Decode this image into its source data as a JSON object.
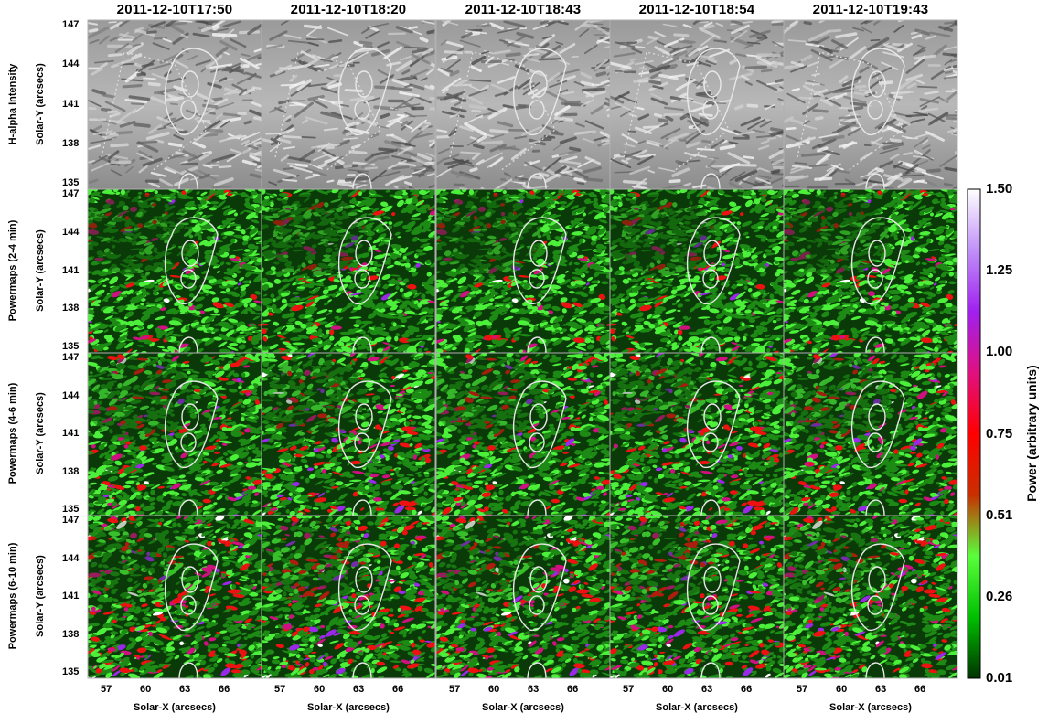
{
  "columns": [
    {
      "title": "2011-12-10T17:50"
    },
    {
      "title": "2011-12-10T18:20"
    },
    {
      "title": "2011-12-10T18:43"
    },
    {
      "title": "2011-12-10T18:54"
    },
    {
      "title": "2011-12-10T19:43"
    }
  ],
  "rows": [
    {
      "label": "H-alpha Intensity",
      "type": "intensity"
    },
    {
      "label": "Powermaps (2-4 min)",
      "type": "power",
      "level": 0.35
    },
    {
      "label": "Powermaps (4-6 min)",
      "type": "power",
      "level": 0.65
    },
    {
      "label": "Powermaps (6-10 min)",
      "type": "power",
      "level": 0.8
    }
  ],
  "ylabel": "Solar-Y (arcsecs)",
  "xlabel": "Solar-X (arcsecs)",
  "yticks": [
    "147",
    "144",
    "141",
    "138",
    "135"
  ],
  "xticks": [
    "57",
    "60",
    "63",
    "66"
  ],
  "colorbar": {
    "label": "Power (arbitrary units)",
    "ticks": [
      "1.50",
      "1.25",
      "1.00",
      "0.75",
      "0.51",
      "0.26",
      "0.01"
    ],
    "colors": [
      "#003300",
      "#00c000",
      "#5aff3a",
      "#c83000",
      "#ff0000",
      "#e01080",
      "#a020f0",
      "#c090f8",
      "#ffffff"
    ]
  },
  "palette": {
    "green_dark": "#0a3a08",
    "green_mid": "#1c8a14",
    "green_bright": "#4cf03a",
    "red": "#ee1111",
    "magenta": "#d01080",
    "purple": "#9a28e8",
    "white": "#ffffff",
    "contour": "#e8e8e8",
    "divider": "#b0b0b0"
  }
}
